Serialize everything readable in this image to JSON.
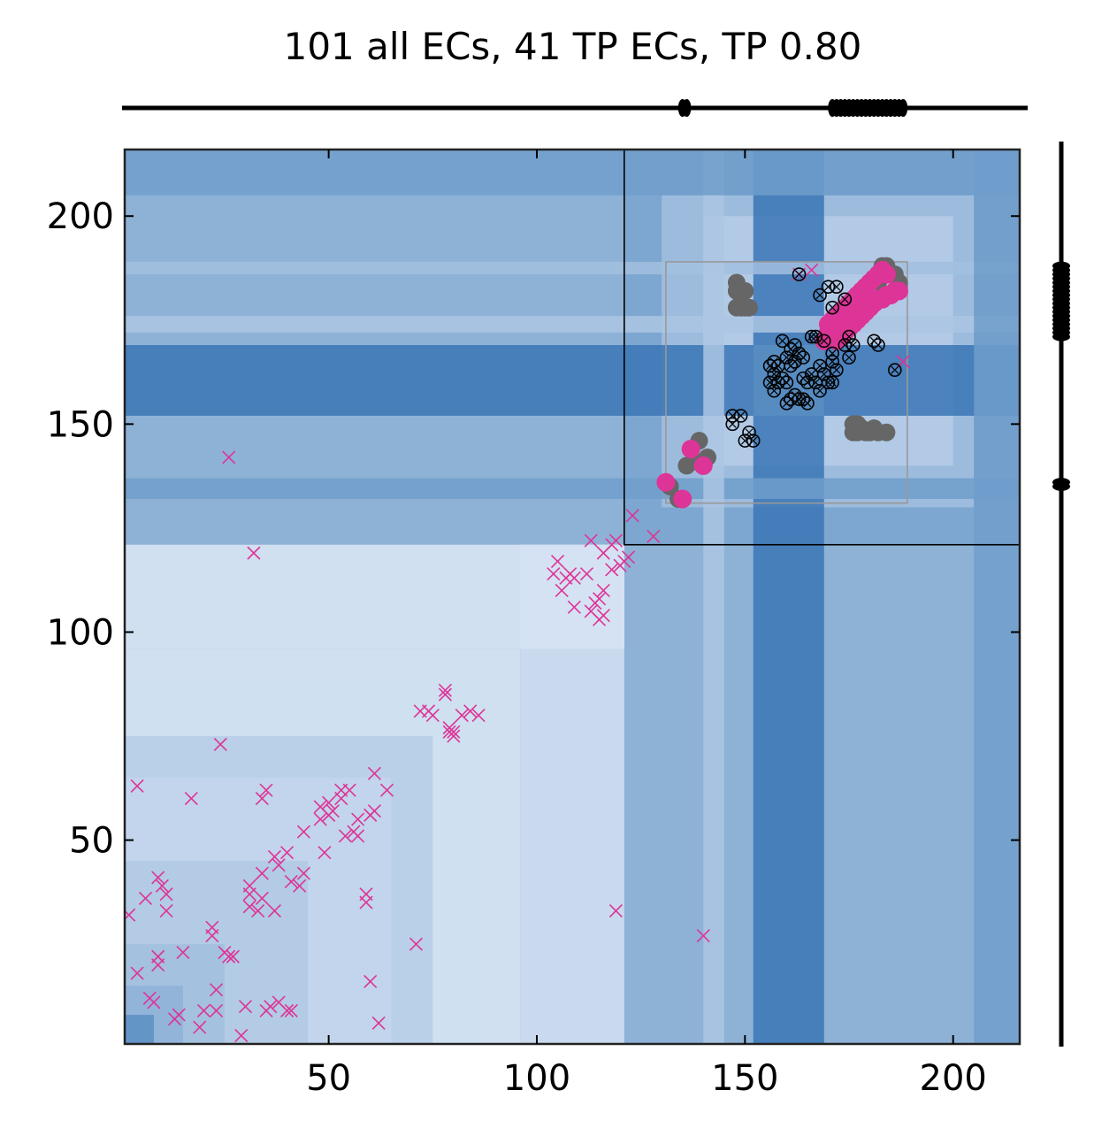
{
  "chart_data": {
    "type": "scatter",
    "title": "101 all ECs, 41 TP ECs, TP 0.80",
    "xlabel": "",
    "ylabel": "",
    "xlim": [
      1,
      216
    ],
    "ylim": [
      1,
      216
    ],
    "xticks": [
      50,
      100,
      150,
      200
    ],
    "yticks": [
      50,
      100,
      150,
      200
    ],
    "colors": {
      "tp": "#dd3497",
      "fp": "#666666",
      "x_marker": "#dd3497",
      "heatmap_dark": "#2c6fb3",
      "heatmap_light": "#e7effa"
    },
    "background_blocks": [
      {
        "x": [
          1,
          216
        ],
        "y": [
          1,
          216
        ],
        "v": 0.55
      },
      {
        "x": [
          1,
          96
        ],
        "y": [
          1,
          96
        ],
        "v": 0.05
      },
      {
        "x": [
          1,
          88
        ],
        "y": [
          1,
          88
        ],
        "v": 0.12
      },
      {
        "x": [
          1,
          75
        ],
        "y": [
          1,
          75
        ],
        "v": 0.25
      },
      {
        "x": [
          1,
          65
        ],
        "y": [
          1,
          65
        ],
        "v": 0.18
      },
      {
        "x": [
          1,
          45
        ],
        "y": [
          1,
          45
        ],
        "v": 0.28
      },
      {
        "x": [
          1,
          25
        ],
        "y": [
          1,
          25
        ],
        "v": 0.35
      },
      {
        "x": [
          1,
          15
        ],
        "y": [
          1,
          15
        ],
        "v": 0.45
      },
      {
        "x": [
          1,
          8
        ],
        "y": [
          1,
          8
        ],
        "v": 0.7
      },
      {
        "x": [
          96,
          121
        ],
        "y": [
          96,
          121
        ],
        "v": 0.02
      },
      {
        "x": [
          1,
          121
        ],
        "y": [
          96,
          121
        ],
        "v": 0.05
      },
      {
        "x": [
          96,
          121
        ],
        "y": [
          1,
          121
        ],
        "v": 0.1
      },
      {
        "x": [
          121,
          216
        ],
        "y": [
          121,
          216
        ],
        "v": 0.55
      },
      {
        "x": [
          130,
          205
        ],
        "y": [
          130,
          205
        ],
        "v": 0.35
      },
      {
        "x": [
          140,
          200
        ],
        "y": [
          140,
          200
        ],
        "v": 0.25
      },
      {
        "x": [
          152,
          169
        ],
        "y": [
          1,
          216
        ],
        "v": 0.88
      },
      {
        "x": [
          1,
          216
        ],
        "y": [
          152,
          169
        ],
        "v": 0.88
      },
      {
        "x": [
          152,
          169
        ],
        "y": [
          152,
          169
        ],
        "v": 0.7
      },
      {
        "x": [
          1,
          216
        ],
        "y": [
          132,
          137
        ],
        "v": 0.6
      },
      {
        "x": [
          1,
          216
        ],
        "y": [
          172,
          176
        ],
        "v": 0.3
      },
      {
        "x": [
          1,
          216
        ],
        "y": [
          186,
          189
        ],
        "v": 0.35
      },
      {
        "x": [
          140,
          145
        ],
        "y": [
          1,
          216
        ],
        "v": 0.3
      },
      {
        "x": [
          205,
          216
        ],
        "y": [
          1,
          216
        ],
        "v": 0.6
      },
      {
        "x": [
          1,
          216
        ],
        "y": [
          205,
          216
        ],
        "v": 0.6
      }
    ],
    "x_markers": [
      [
        2,
        32
      ],
      [
        4,
        18
      ],
      [
        6,
        36
      ],
      [
        7,
        12
      ],
      [
        8,
        11
      ],
      [
        9,
        22
      ],
      [
        9,
        20
      ],
      [
        9,
        41
      ],
      [
        10,
        39
      ],
      [
        11,
        37
      ],
      [
        11,
        33
      ],
      [
        13,
        7
      ],
      [
        14,
        8
      ],
      [
        15,
        23
      ],
      [
        17,
        60
      ],
      [
        19,
        5
      ],
      [
        20,
        9
      ],
      [
        22,
        29
      ],
      [
        22,
        27
      ],
      [
        23,
        14
      ],
      [
        23,
        9
      ],
      [
        25,
        23
      ],
      [
        26,
        22
      ],
      [
        27,
        22
      ],
      [
        29,
        3
      ],
      [
        30,
        10
      ],
      [
        31,
        39
      ],
      [
        31,
        37
      ],
      [
        33,
        33
      ],
      [
        34,
        42
      ],
      [
        34,
        60
      ],
      [
        35,
        9
      ],
      [
        35,
        62
      ],
      [
        36,
        10
      ],
      [
        37,
        46
      ],
      [
        37,
        33
      ],
      [
        38,
        44
      ],
      [
        38,
        11
      ],
      [
        40,
        9
      ],
      [
        40,
        47
      ],
      [
        41,
        40
      ],
      [
        43,
        39
      ],
      [
        44,
        42
      ],
      [
        44,
        52
      ],
      [
        48,
        55
      ],
      [
        48,
        58
      ],
      [
        49,
        47
      ],
      [
        50,
        56
      ],
      [
        50,
        59
      ],
      [
        51,
        57
      ],
      [
        53,
        60
      ],
      [
        53,
        62
      ],
      [
        54,
        51
      ],
      [
        55,
        62
      ],
      [
        56,
        52
      ],
      [
        57,
        55
      ],
      [
        57,
        51
      ],
      [
        59,
        35
      ],
      [
        59,
        37
      ],
      [
        60,
        16
      ],
      [
        60,
        56
      ],
      [
        61,
        57
      ],
      [
        61,
        66
      ],
      [
        62,
        6
      ],
      [
        64,
        62
      ],
      [
        71,
        25
      ],
      [
        72,
        81
      ],
      [
        74,
        81
      ],
      [
        75,
        80
      ],
      [
        78,
        85
      ],
      [
        78,
        86
      ],
      [
        79,
        76
      ],
      [
        79,
        77
      ],
      [
        80,
        75
      ],
      [
        80,
        76
      ],
      [
        82,
        80
      ],
      [
        84,
        81
      ],
      [
        86,
        80
      ],
      [
        24,
        73
      ],
      [
        26,
        142
      ],
      [
        32,
        119
      ],
      [
        4,
        63
      ],
      [
        31,
        34
      ],
      [
        34,
        36
      ],
      [
        41,
        9
      ],
      [
        104,
        114
      ],
      [
        105,
        117
      ],
      [
        106,
        110
      ],
      [
        107,
        113
      ],
      [
        108,
        114
      ],
      [
        109,
        113
      ],
      [
        109,
        106
      ],
      [
        112,
        114
      ],
      [
        113,
        105
      ],
      [
        114,
        107
      ],
      [
        115,
        108
      ],
      [
        115,
        103
      ],
      [
        116,
        104
      ],
      [
        116,
        110
      ],
      [
        116,
        119
      ],
      [
        118,
        121
      ],
      [
        118,
        115
      ],
      [
        119,
        122
      ],
      [
        120,
        116
      ],
      [
        121,
        117
      ],
      [
        122,
        118
      ],
      [
        123,
        128
      ],
      [
        128,
        123
      ],
      [
        119,
        33
      ],
      [
        140,
        27
      ],
      [
        163,
        186
      ],
      [
        166,
        187
      ],
      [
        188,
        165
      ],
      [
        113,
        122
      ]
    ],
    "tp_points": [
      [
        131,
        136
      ],
      [
        135,
        132
      ],
      [
        137,
        144
      ],
      [
        140,
        140
      ],
      [
        170,
        174
      ],
      [
        172,
        176
      ],
      [
        174,
        178
      ],
      [
        176,
        180
      ],
      [
        178,
        182
      ],
      [
        180,
        184
      ],
      [
        182,
        186
      ],
      [
        184,
        186
      ],
      [
        172,
        170
      ],
      [
        174,
        172
      ],
      [
        176,
        174
      ],
      [
        178,
        176
      ],
      [
        180,
        178
      ],
      [
        182,
        180
      ],
      [
        184,
        181
      ],
      [
        186,
        182
      ],
      [
        171,
        175
      ],
      [
        173,
        177
      ],
      [
        175,
        179
      ],
      [
        177,
        181
      ],
      [
        179,
        183
      ],
      [
        181,
        185
      ],
      [
        183,
        187
      ],
      [
        173,
        171
      ],
      [
        175,
        173
      ],
      [
        177,
        175
      ],
      [
        179,
        177
      ],
      [
        181,
        179
      ],
      [
        183,
        180
      ],
      [
        185,
        181
      ],
      [
        187,
        182
      ],
      [
        170,
        172
      ],
      [
        169,
        170
      ],
      [
        171,
        172
      ],
      [
        176,
        176
      ],
      [
        180,
        180
      ],
      [
        178,
        180
      ]
    ],
    "fp_points": [
      [
        132,
        135
      ],
      [
        134,
        132
      ],
      [
        136,
        140
      ],
      [
        138,
        141
      ],
      [
        139,
        146
      ],
      [
        141,
        142
      ],
      [
        148,
        182
      ],
      [
        148,
        184
      ],
      [
        149,
        181
      ],
      [
        150,
        182
      ],
      [
        148,
        178
      ],
      [
        149,
        178
      ],
      [
        150,
        178
      ],
      [
        151,
        178
      ],
      [
        176,
        150
      ],
      [
        176,
        148
      ],
      [
        177,
        150
      ],
      [
        177,
        148
      ],
      [
        178,
        149
      ],
      [
        179,
        148
      ],
      [
        180,
        148
      ],
      [
        181,
        149
      ],
      [
        182,
        148
      ],
      [
        184,
        148
      ],
      [
        184,
        188
      ],
      [
        186,
        186
      ],
      [
        187,
        184
      ],
      [
        187,
        183
      ],
      [
        182,
        184
      ],
      [
        183,
        188
      ]
    ],
    "open_circle_points": [
      [
        147,
        152
      ],
      [
        147,
        150
      ],
      [
        149,
        152
      ],
      [
        151,
        148
      ],
      [
        150,
        146
      ],
      [
        152,
        146
      ],
      [
        156,
        164
      ],
      [
        157,
        162
      ],
      [
        158,
        160
      ],
      [
        159,
        161
      ],
      [
        160,
        160
      ],
      [
        156,
        160
      ],
      [
        157,
        158
      ],
      [
        161,
        156
      ],
      [
        160,
        155
      ],
      [
        162,
        157
      ],
      [
        163,
        156
      ],
      [
        161,
        164
      ],
      [
        162,
        165
      ],
      [
        163,
        167
      ],
      [
        164,
        166
      ],
      [
        165,
        160
      ],
      [
        166,
        162
      ],
      [
        167,
        160
      ],
      [
        168,
        158
      ],
      [
        169,
        162
      ],
      [
        170,
        160
      ],
      [
        159,
        170
      ],
      [
        161,
        168
      ],
      [
        162,
        169
      ],
      [
        166,
        171
      ],
      [
        167,
        171
      ],
      [
        171,
        165
      ],
      [
        171,
        167
      ],
      [
        172,
        163
      ],
      [
        171,
        160
      ],
      [
        174,
        169
      ],
      [
        175,
        171
      ],
      [
        176,
        169
      ],
      [
        181,
        170
      ],
      [
        182,
        169
      ],
      [
        164,
        156
      ],
      [
        163,
        186
      ],
      [
        168,
        181
      ],
      [
        170,
        183
      ],
      [
        172,
        183
      ],
      [
        171,
        178
      ],
      [
        186,
        163
      ],
      [
        174,
        180
      ],
      [
        165,
        155
      ],
      [
        158,
        164
      ],
      [
        160,
        166
      ],
      [
        169,
        170
      ],
      [
        175,
        166
      ],
      [
        164,
        161
      ],
      [
        157,
        165
      ],
      [
        168,
        164
      ]
    ],
    "boxes": [
      {
        "x": [
          121,
          216
        ],
        "y": [
          121,
          216
        ],
        "color": "#000000"
      },
      {
        "x": [
          131,
          189
        ],
        "y": [
          131,
          189
        ],
        "color": "#999999"
      }
    ],
    "top_strip_positions": [
      135,
      136,
      171,
      172,
      173,
      174,
      175,
      176,
      177,
      178,
      179,
      180,
      181,
      182,
      183,
      184,
      185,
      186,
      187,
      188
    ],
    "right_strip_positions": [
      135,
      136,
      171,
      172,
      173,
      174,
      175,
      176,
      177,
      178,
      179,
      180,
      181,
      182,
      183,
      184,
      185,
      186,
      187,
      188
    ]
  }
}
